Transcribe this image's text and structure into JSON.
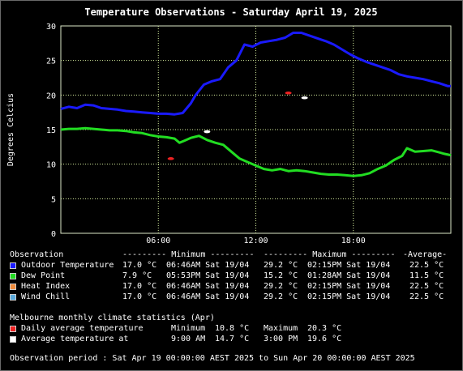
{
  "chart_data": {
    "type": "line",
    "title": "Temperature Observations - Saturday April 19, 2025",
    "ylabel": "Degrees Celcius",
    "xlabel": "",
    "ylim": [
      0,
      30
    ],
    "y_ticks": [
      0,
      5,
      10,
      15,
      20,
      25,
      30
    ],
    "x_ticks": [
      "06:00",
      "12:00",
      "18:00"
    ],
    "grid": true,
    "series": [
      {
        "name": "Outdoor Temperature",
        "color": "#1a1aff",
        "points": [
          [
            0,
            18.0
          ],
          [
            0.5,
            18.3
          ],
          [
            1.0,
            18.1
          ],
          [
            1.5,
            18.6
          ],
          [
            2.0,
            18.5
          ],
          [
            2.5,
            18.1
          ],
          [
            3.0,
            18.0
          ],
          [
            3.5,
            17.9
          ],
          [
            4.0,
            17.7
          ],
          [
            4.5,
            17.6
          ],
          [
            5.0,
            17.5
          ],
          [
            5.5,
            17.4
          ],
          [
            6.0,
            17.3
          ],
          [
            6.5,
            17.3
          ],
          [
            7.0,
            17.2
          ],
          [
            7.5,
            17.4
          ],
          [
            8.0,
            18.8
          ],
          [
            8.3,
            20.0
          ],
          [
            8.8,
            21.5
          ],
          [
            9.3,
            22.0
          ],
          [
            9.8,
            22.3
          ],
          [
            10.3,
            24.0
          ],
          [
            10.8,
            25.0
          ],
          [
            11.3,
            27.3
          ],
          [
            11.8,
            27.0
          ],
          [
            12.3,
            27.6
          ],
          [
            12.8,
            27.8
          ],
          [
            13.3,
            28.0
          ],
          [
            13.8,
            28.3
          ],
          [
            14.3,
            29.0
          ],
          [
            14.8,
            29.0
          ],
          [
            15.3,
            28.6
          ],
          [
            15.8,
            28.2
          ],
          [
            16.3,
            27.8
          ],
          [
            16.8,
            27.3
          ],
          [
            17.3,
            26.6
          ],
          [
            17.8,
            25.9
          ],
          [
            18.3,
            25.3
          ],
          [
            18.8,
            24.8
          ],
          [
            19.3,
            24.4
          ],
          [
            19.8,
            24.0
          ],
          [
            20.3,
            23.6
          ],
          [
            20.8,
            23.0
          ],
          [
            21.3,
            22.7
          ],
          [
            21.8,
            22.5
          ],
          [
            22.3,
            22.3
          ],
          [
            22.8,
            22.0
          ],
          [
            23.3,
            21.7
          ],
          [
            23.8,
            21.3
          ],
          [
            24.0,
            21.3
          ]
        ]
      },
      {
        "name": "Dew Point",
        "color": "#22dd22",
        "points": [
          [
            0,
            15.0
          ],
          [
            0.5,
            15.1
          ],
          [
            1.0,
            15.1
          ],
          [
            1.5,
            15.2
          ],
          [
            2.0,
            15.1
          ],
          [
            2.5,
            15.0
          ],
          [
            3.0,
            14.9
          ],
          [
            3.5,
            14.9
          ],
          [
            4.0,
            14.8
          ],
          [
            4.5,
            14.6
          ],
          [
            5.0,
            14.5
          ],
          [
            5.5,
            14.2
          ],
          [
            6.0,
            14.0
          ],
          [
            6.5,
            13.9
          ],
          [
            7.0,
            13.7
          ],
          [
            7.3,
            13.1
          ],
          [
            7.6,
            13.4
          ],
          [
            8.0,
            13.8
          ],
          [
            8.5,
            14.1
          ],
          [
            9.0,
            13.5
          ],
          [
            9.5,
            13.1
          ],
          [
            10.0,
            12.8
          ],
          [
            10.5,
            11.8
          ],
          [
            11.0,
            10.8
          ],
          [
            11.5,
            10.3
          ],
          [
            12.0,
            9.8
          ],
          [
            12.5,
            9.3
          ],
          [
            13.0,
            9.1
          ],
          [
            13.5,
            9.3
          ],
          [
            14.0,
            9.0
          ],
          [
            14.5,
            9.1
          ],
          [
            15.0,
            9.0
          ],
          [
            15.5,
            8.8
          ],
          [
            16.0,
            8.6
          ],
          [
            16.5,
            8.5
          ],
          [
            17.0,
            8.5
          ],
          [
            17.5,
            8.4
          ],
          [
            18.0,
            8.3
          ],
          [
            18.5,
            8.4
          ],
          [
            19.0,
            8.7
          ],
          [
            19.5,
            9.3
          ],
          [
            20.0,
            9.8
          ],
          [
            20.5,
            10.6
          ],
          [
            21.0,
            11.2
          ],
          [
            21.3,
            12.3
          ],
          [
            21.8,
            11.8
          ],
          [
            22.3,
            11.9
          ],
          [
            22.8,
            12.0
          ],
          [
            23.3,
            11.7
          ],
          [
            23.6,
            11.5
          ],
          [
            24.0,
            11.3
          ]
        ]
      }
    ],
    "markers": [
      {
        "name": "Daily average temperature",
        "color": "#ee2222",
        "points": [
          [
            6.77,
            10.8
          ],
          [
            14.0,
            20.3
          ]
        ]
      },
      {
        "name": "Average temperature",
        "color": "#ffffff",
        "points": [
          [
            9.0,
            14.7
          ],
          [
            15.0,
            19.6
          ]
        ]
      }
    ]
  },
  "legend": {
    "header": {
      "observation": "Observation",
      "minimum": "--------- Minimum ---------",
      "maximum": "--------- Maximum ---------",
      "average": "-Average-"
    },
    "rows": [
      {
        "color": "#1a1aff",
        "name": "Outdoor Temperature",
        "min": "17.0 °C",
        "min_time": "06:46AM Sat 19/04",
        "max": "29.2 °C",
        "max_time": "02:15PM Sat 19/04",
        "avg": "22.5 °C"
      },
      {
        "color": "#22dd22",
        "name": "Dew Point",
        "min": "7.9 °C",
        "min_time": "05:53PM Sat 19/04",
        "max": "15.2 °C",
        "max_time": "01:28AM Sat 19/04",
        "avg": "11.5 °C"
      },
      {
        "color": "#f08c3c",
        "name": "Heat Index",
        "min": "17.0 °C",
        "min_time": "06:46AM Sat 19/04",
        "max": "29.2 °C",
        "max_time": "02:15PM Sat 19/04",
        "avg": "22.5 °C"
      },
      {
        "color": "#5aaadc",
        "name": "Wind Chill",
        "min": "17.0 °C",
        "min_time": "06:46AM Sat 19/04",
        "max": "29.2 °C",
        "max_time": "02:15PM Sat 19/04",
        "avg": "22.5 °C"
      }
    ]
  },
  "climate": {
    "title": "Melbourne monthly climate statistics (Apr)",
    "daily": {
      "color": "#ee2222",
      "label": "Daily average temperature",
      "min_label": "Minimum",
      "min_value": "10.8 °C",
      "max_label": "Maximum",
      "max_value": "20.3 °C"
    },
    "average": {
      "color": "#ffffff",
      "label": "Average temperature at",
      "time1": "9:00 AM",
      "value1": "14.7 °C",
      "time2": "3:00 PM",
      "value2": "19.6 °C"
    }
  },
  "footer": {
    "observation_period": "Observation period : Sat Apr 19 00:00:00 AEST 2025 to Sun Apr 20 00:00:00 AEST 2025"
  }
}
